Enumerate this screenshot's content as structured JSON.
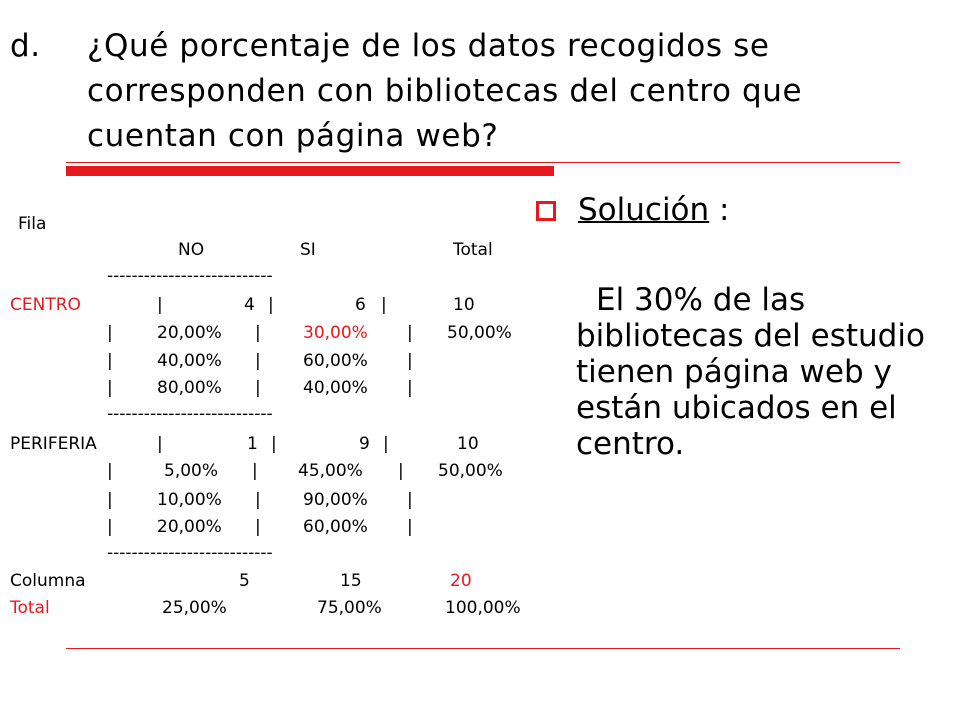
{
  "title": {
    "letter": "d.",
    "text": "¿Qué porcentaje de los datos recogidos se corresponden con bibliotecas del centro que cuentan con página web?"
  },
  "table": {
    "fila_label": "Fila",
    "headers": [
      "NO",
      "SI",
      "Total"
    ],
    "separator": "---------------------------",
    "groups": [
      {
        "label": "CENTRO",
        "rows": [
          [
            "4",
            "6",
            "10"
          ],
          [
            "20,00%",
            "30,00%",
            "50,00%"
          ],
          [
            "40,00%",
            "60,00%",
            ""
          ],
          [
            "80,00%",
            "40,00%",
            ""
          ]
        ]
      },
      {
        "label": "PERIFERIA",
        "rows": [
          [
            "1",
            "9",
            "10"
          ],
          [
            "5,00%",
            "45,00%",
            "50,00%"
          ],
          [
            "10,00%",
            "90,00%",
            ""
          ],
          [
            "20,00%",
            "60,00%",
            ""
          ]
        ]
      }
    ],
    "column_total_label": "Columna",
    "total_label": "Total",
    "column_totals": [
      "5",
      "15",
      "20"
    ],
    "column_percents": [
      "25,00%",
      "75,00%",
      "100,00%"
    ]
  },
  "solution": {
    "label": "Solución",
    "colon": ":",
    "answer": "El 30% de las bibliotecas del estudio tienen página web y están ubicados en el centro."
  },
  "colors": {
    "accent": "#e8191e"
  }
}
